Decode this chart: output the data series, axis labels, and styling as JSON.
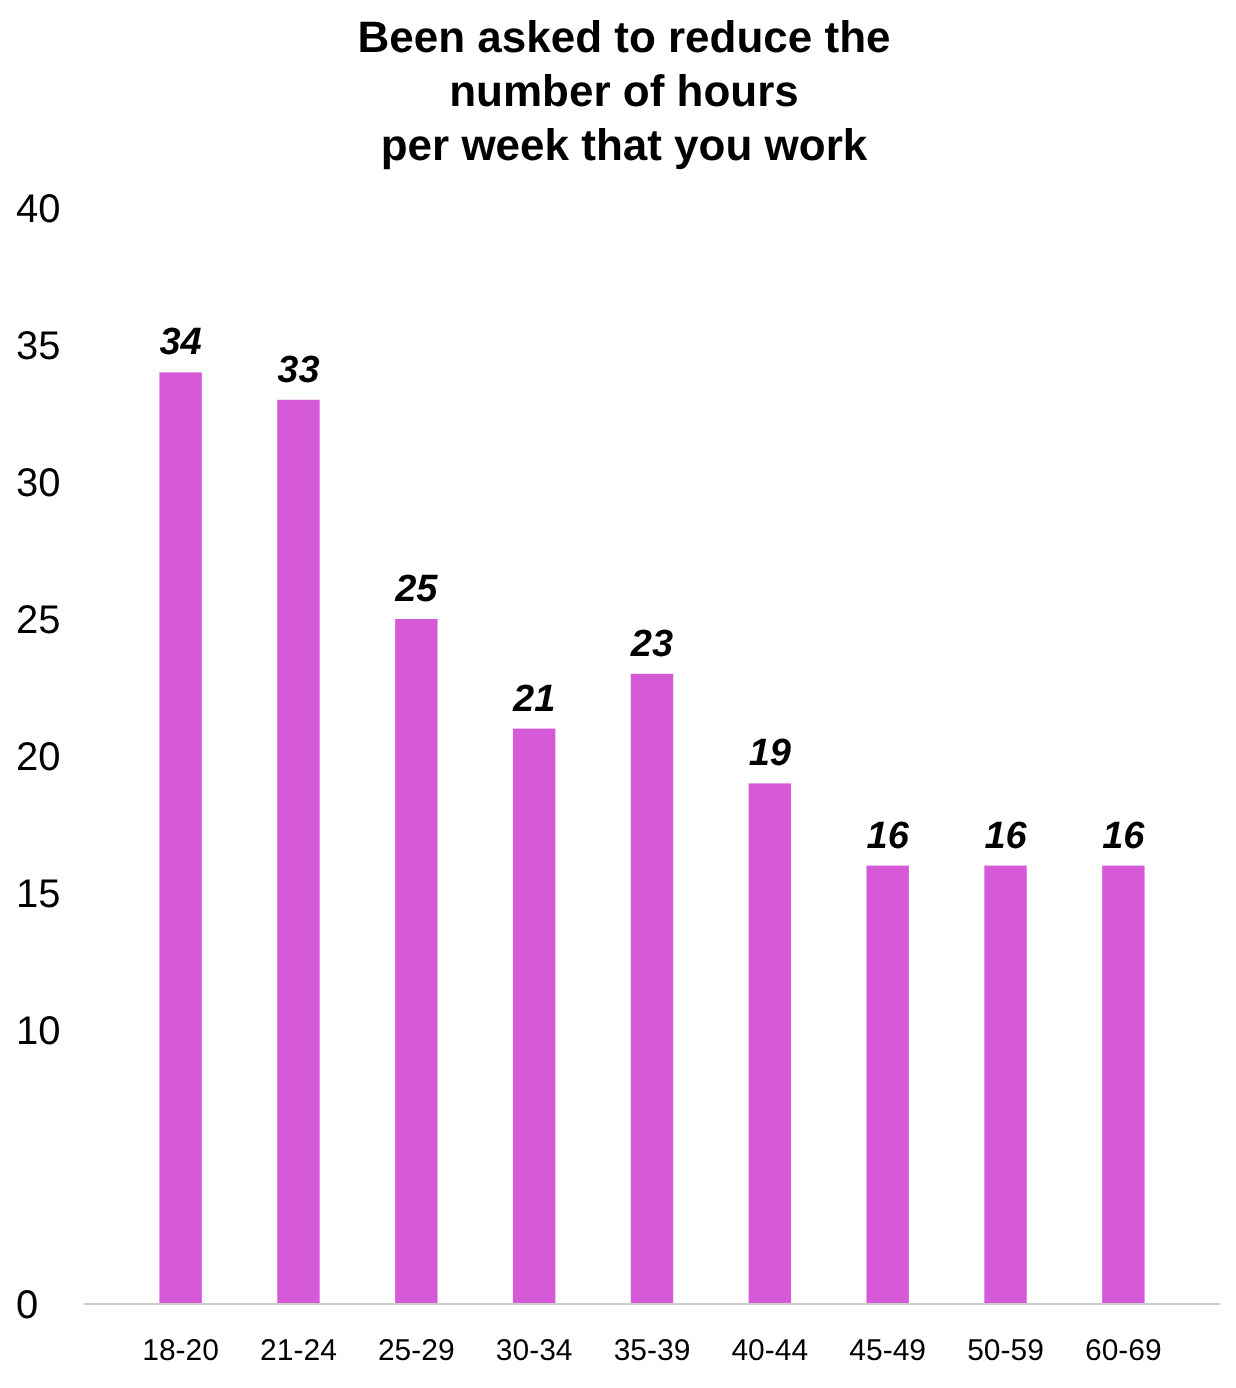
{
  "chart_data": {
    "type": "bar",
    "title": "Been asked to reduce the\nnumber of hours\nper week that you work",
    "categories": [
      "18-20",
      "21-24",
      "25-29",
      "30-34",
      "35-39",
      "40-44",
      "45-49",
      "50-59",
      "60-69"
    ],
    "values": [
      34,
      33,
      25,
      21,
      23,
      19,
      16,
      16,
      16
    ],
    "color": "#d65ad8",
    "ylim": [
      0,
      40
    ],
    "yticks": [
      0,
      10,
      15,
      20,
      25,
      30,
      35,
      40
    ],
    "grid": false,
    "data_labels": true
  }
}
